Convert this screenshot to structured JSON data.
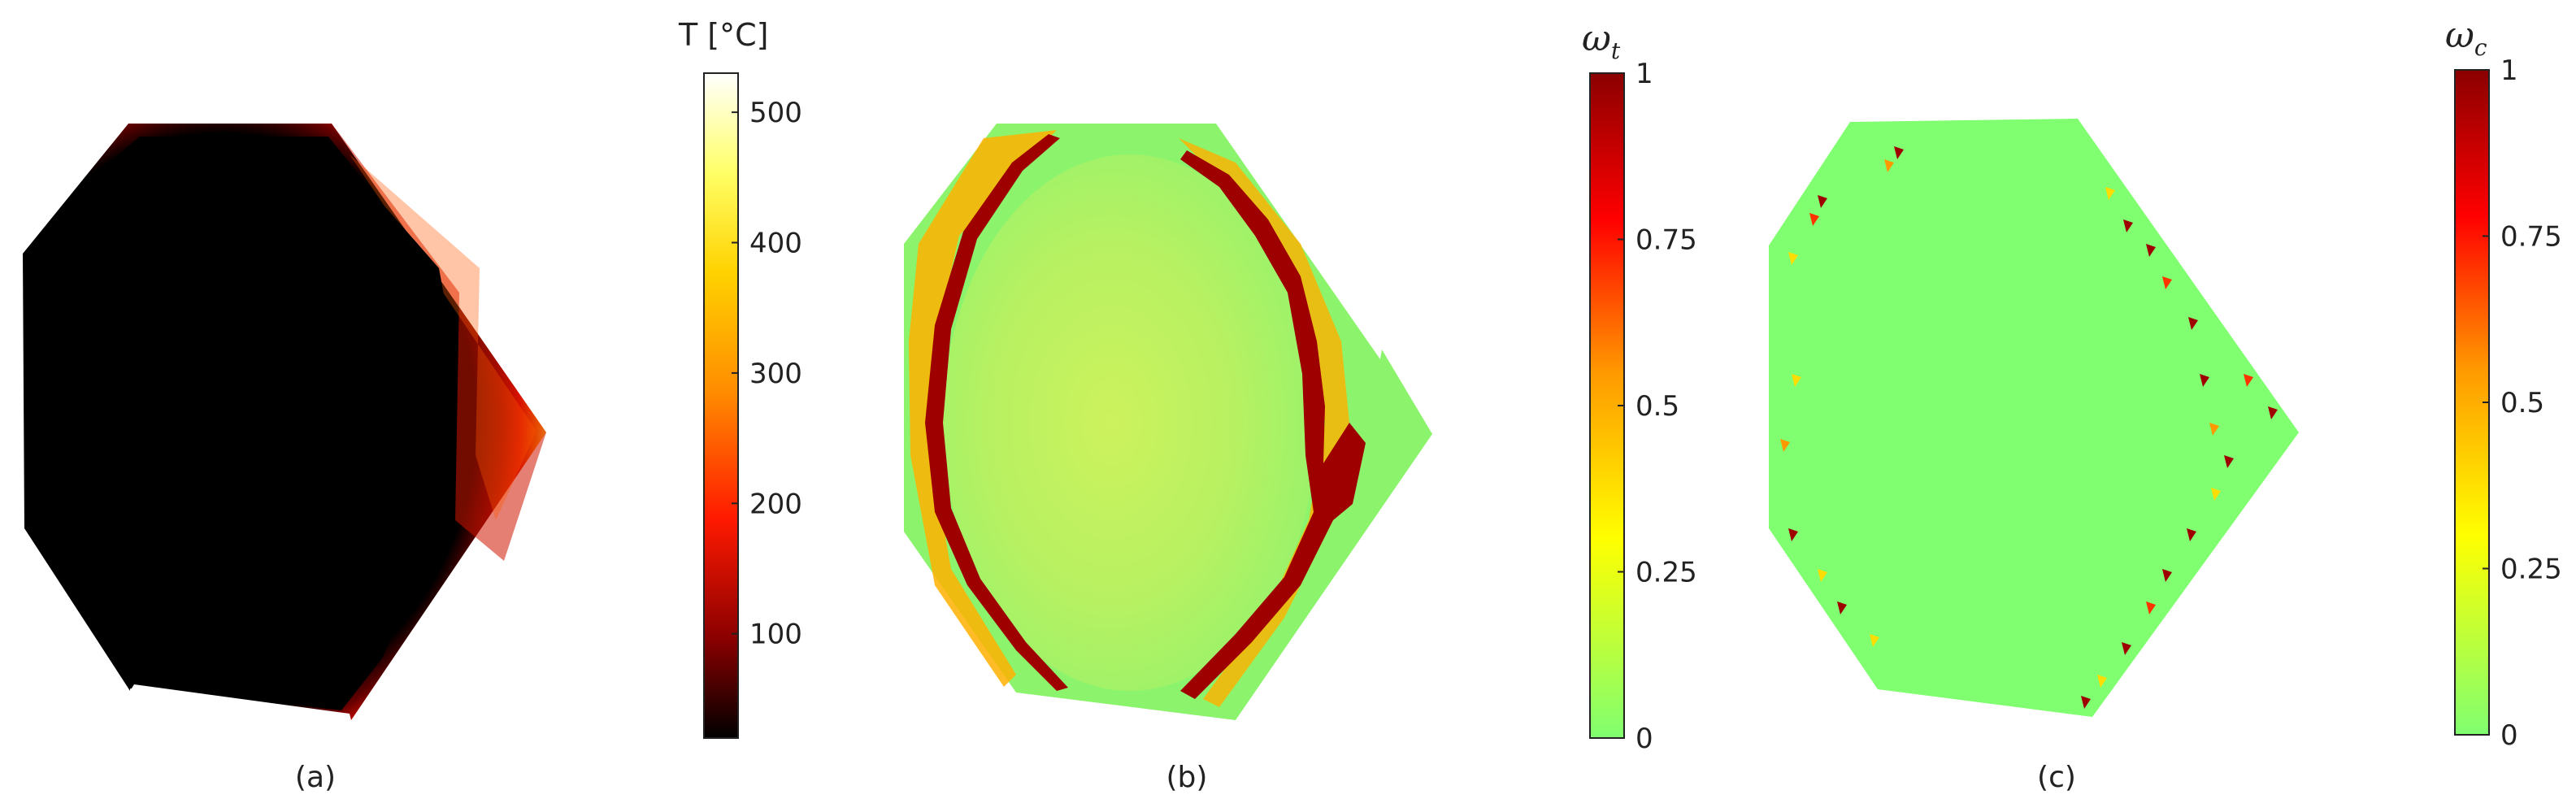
{
  "panels": [
    {
      "id": "a",
      "caption": "(a)",
      "colorbar": {
        "title": "T [°C]",
        "ticks": [
          {
            "label": "500",
            "value": 500
          },
          {
            "label": "400",
            "value": 400
          },
          {
            "label": "300",
            "value": 300
          },
          {
            "label": "200",
            "value": 200
          },
          {
            "label": "100",
            "value": 100
          }
        ],
        "range": [
          20,
          530
        ],
        "colormap": [
          "#000000",
          "#8b0000",
          "#ff1a00",
          "#ff8c00",
          "#ffd200",
          "#ffff66",
          "#ffffff"
        ]
      }
    },
    {
      "id": "b",
      "caption": "(b)",
      "colorbar": {
        "symbol": "ω",
        "subscript": "t",
        "ticks": [
          {
            "label": "1",
            "value": 1
          },
          {
            "label": "0.75",
            "value": 0.75
          },
          {
            "label": "0.5",
            "value": 0.5
          },
          {
            "label": "0.25",
            "value": 0.25
          },
          {
            "label": "0",
            "value": 0
          }
        ],
        "range": [
          0,
          1
        ],
        "colormap": [
          "#80ff70",
          "#ffff00",
          "#ff9900",
          "#ff0000",
          "#8b0000"
        ]
      }
    },
    {
      "id": "c",
      "caption": "(c)",
      "colorbar": {
        "symbol": "ω",
        "subscript": "c",
        "ticks": [
          {
            "label": "1",
            "value": 1
          },
          {
            "label": "0.75",
            "value": 0.75
          },
          {
            "label": "0.5",
            "value": 0.5
          },
          {
            "label": "0.25",
            "value": 0.25
          },
          {
            "label": "0",
            "value": 0
          }
        ],
        "range": [
          0,
          1
        ],
        "colormap": [
          "#80ff70",
          "#ffff00",
          "#ff9900",
          "#ff0000",
          "#8b0000"
        ]
      }
    }
  ]
}
